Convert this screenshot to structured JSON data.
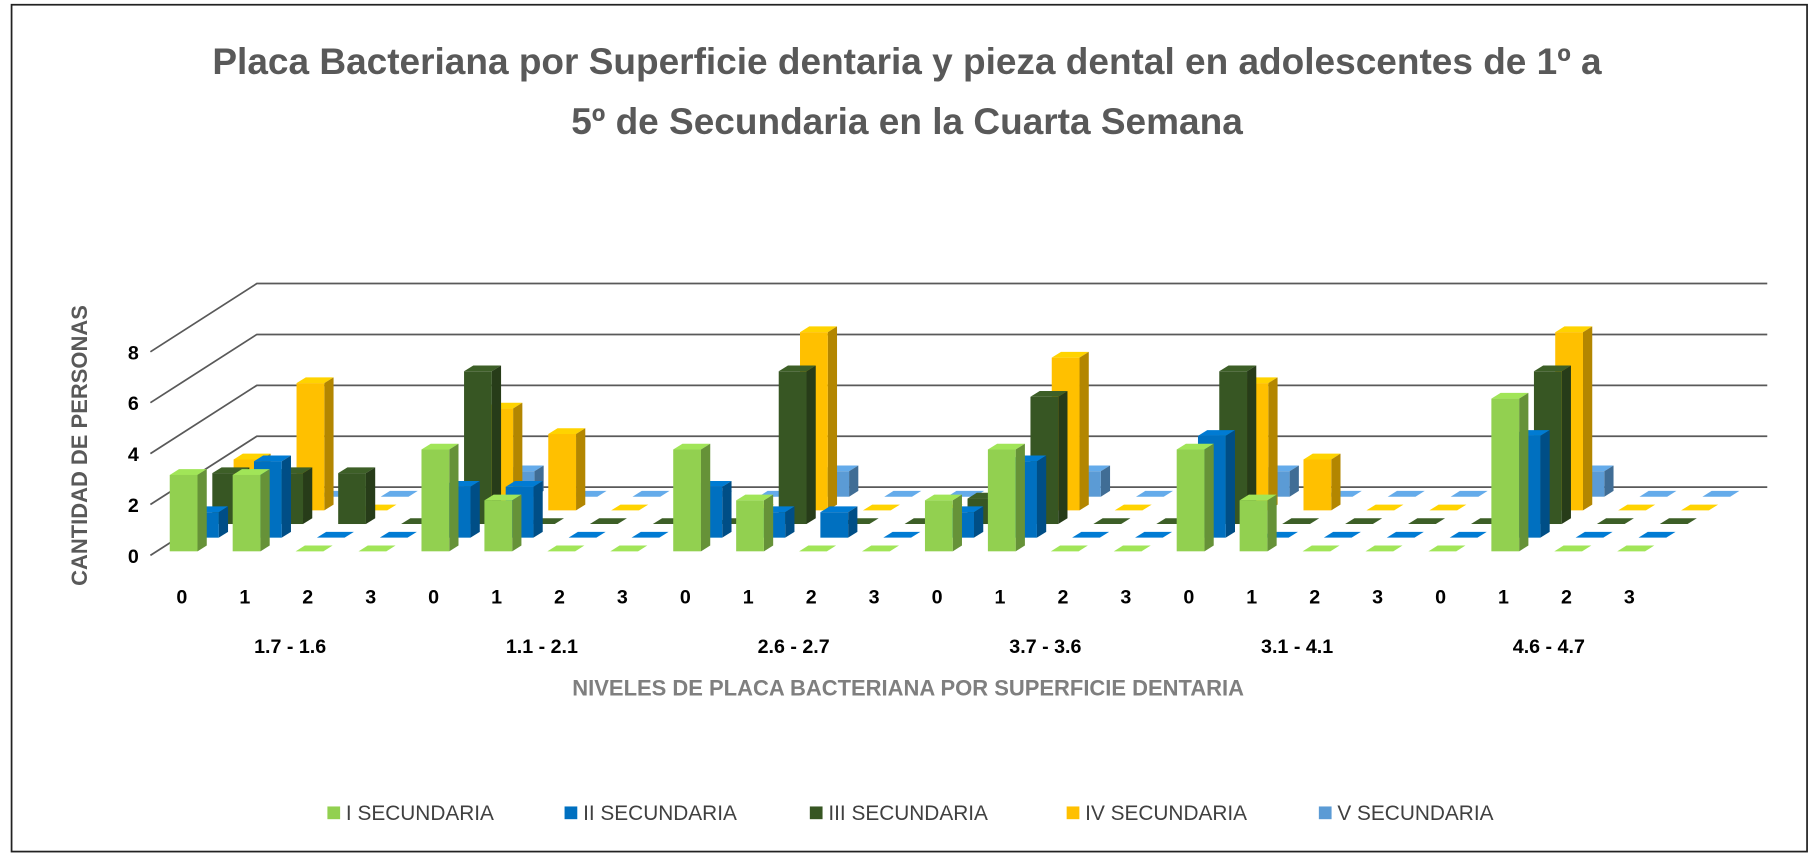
{
  "chart_data": {
    "type": "bar3d",
    "title": "Placa Bacteriana por Superficie dentaria y pieza dental en adolescentes de 1º a 5º de Secundaria en la Cuarta Semana",
    "x_label": "NIVELES DE PLACA BACTERIANA POR SUPERFICIE DENTARIA",
    "y_label": "CANTIDAD DE PERSONAS",
    "categories": [
      "0",
      "1",
      "2",
      "3",
      "0",
      "1",
      "2",
      "3",
      "0",
      "1",
      "2",
      "3",
      "0",
      "1",
      "2",
      "3",
      "0",
      "1",
      "2",
      "3",
      "0",
      "1",
      "2",
      "3"
    ],
    "groups": [
      "1.7 - 1.6",
      "1.1 - 2.1",
      "2.6 - 2.7",
      "3.7 - 3.6",
      "3.1 - 4.1",
      "4.6 - 4.7"
    ],
    "series": [
      {
        "name": "I SECUNDARIA",
        "color": "#92d050",
        "values": [
          3,
          3,
          0,
          0,
          4,
          2,
          0,
          0,
          4,
          2,
          0,
          0,
          2,
          4,
          0,
          0,
          4,
          2,
          0,
          0,
          0,
          6,
          0,
          0
        ]
      },
      {
        "name": "II SECUNDARIA",
        "color": "#0070c0",
        "values": [
          1,
          3,
          0,
          0,
          2,
          2,
          0,
          0,
          2,
          1,
          1,
          0,
          1,
          3,
          0,
          0,
          4,
          0,
          0,
          0,
          0,
          4,
          0,
          0
        ]
      },
      {
        "name": "III SECUNDARIA",
        "color": "#375623",
        "values": [
          2,
          2,
          2,
          0,
          6,
          0,
          0,
          0,
          0,
          6,
          0,
          0,
          1,
          5,
          0,
          0,
          6,
          0,
          0,
          0,
          0,
          6,
          0,
          0
        ]
      },
      {
        "name": "IV SECUNDARIA",
        "color": "#ffc000",
        "values": [
          2,
          5,
          0,
          0,
          4,
          3,
          0,
          0,
          0,
          7,
          0,
          0,
          0,
          6,
          0,
          0,
          5,
          2,
          0,
          0,
          0,
          7,
          0,
          0
        ]
      },
      {
        "name": "V SECUNDARIA",
        "color": "#5b9bd5",
        "values": [
          0,
          0,
          0,
          0,
          1,
          0,
          0,
          0,
          0,
          1,
          0,
          0,
          0,
          1,
          0,
          0,
          1,
          0,
          0,
          0,
          0,
          1,
          0,
          0
        ]
      }
    ],
    "ylim": [
      0,
      8
    ],
    "yticks": [
      0,
      2,
      4,
      6,
      8
    ],
    "grid": true,
    "legend": "bottom"
  }
}
